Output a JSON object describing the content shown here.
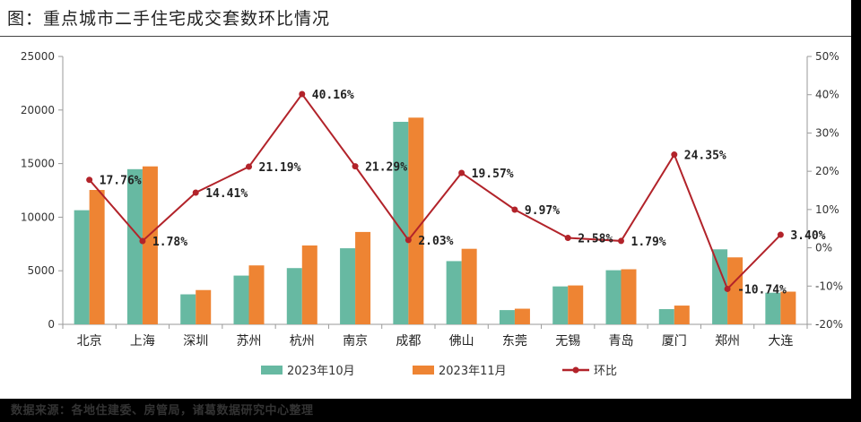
{
  "title": "图：重点城市二手住宅成交套数环比情况",
  "source": "数据来源：各地住建委、房管局，诸葛数据研究中心整理",
  "colors": {
    "oct": "#67B9A2",
    "nov": "#EE8433",
    "mom": "#B2232A",
    "axis": "#9a9a9a"
  },
  "chart_data": {
    "type": "bar",
    "categories": [
      "北京",
      "上海",
      "深圳",
      "苏州",
      "杭州",
      "南京",
      "成都",
      "佛山",
      "东莞",
      "无锡",
      "青岛",
      "厦门",
      "郑州",
      "大连"
    ],
    "series": [
      {
        "name": "2023年10月",
        "axis": "left",
        "values": [
          10650,
          14480,
          2800,
          4550,
          5250,
          7100,
          18900,
          5900,
          1330,
          3540,
          5050,
          1420,
          7000,
          2950
        ]
      },
      {
        "name": "2023年11月",
        "axis": "left",
        "values": [
          12540,
          14740,
          3200,
          5500,
          7360,
          8620,
          19290,
          7050,
          1460,
          3630,
          5140,
          1750,
          6250,
          3050
        ]
      },
      {
        "name": "环比",
        "type": "line",
        "axis": "right",
        "values": [
          17.76,
          1.78,
          14.41,
          21.19,
          40.16,
          21.29,
          2.03,
          19.57,
          9.97,
          2.58,
          1.79,
          24.35,
          -10.74,
          3.4
        ],
        "labels": [
          "17.76%",
          "1.78%",
          "14.41%",
          "21.19%",
          "40.16%",
          "21.29%",
          "2.03%",
          "19.57%",
          "9.97%",
          "2.58%",
          "1.79%",
          "24.35%",
          "-10.74%",
          "3.40%"
        ]
      }
    ],
    "ylim": [
      0,
      25000
    ],
    "yticks": [
      "0",
      "5000",
      "10000",
      "15000",
      "20000",
      "25000"
    ],
    "y2lim": [
      -20,
      50
    ],
    "y2ticks": [
      "-20%",
      "-10%",
      "0%",
      "10%",
      "20%",
      "30%",
      "40%",
      "50%"
    ],
    "legend_position": "bottom"
  }
}
